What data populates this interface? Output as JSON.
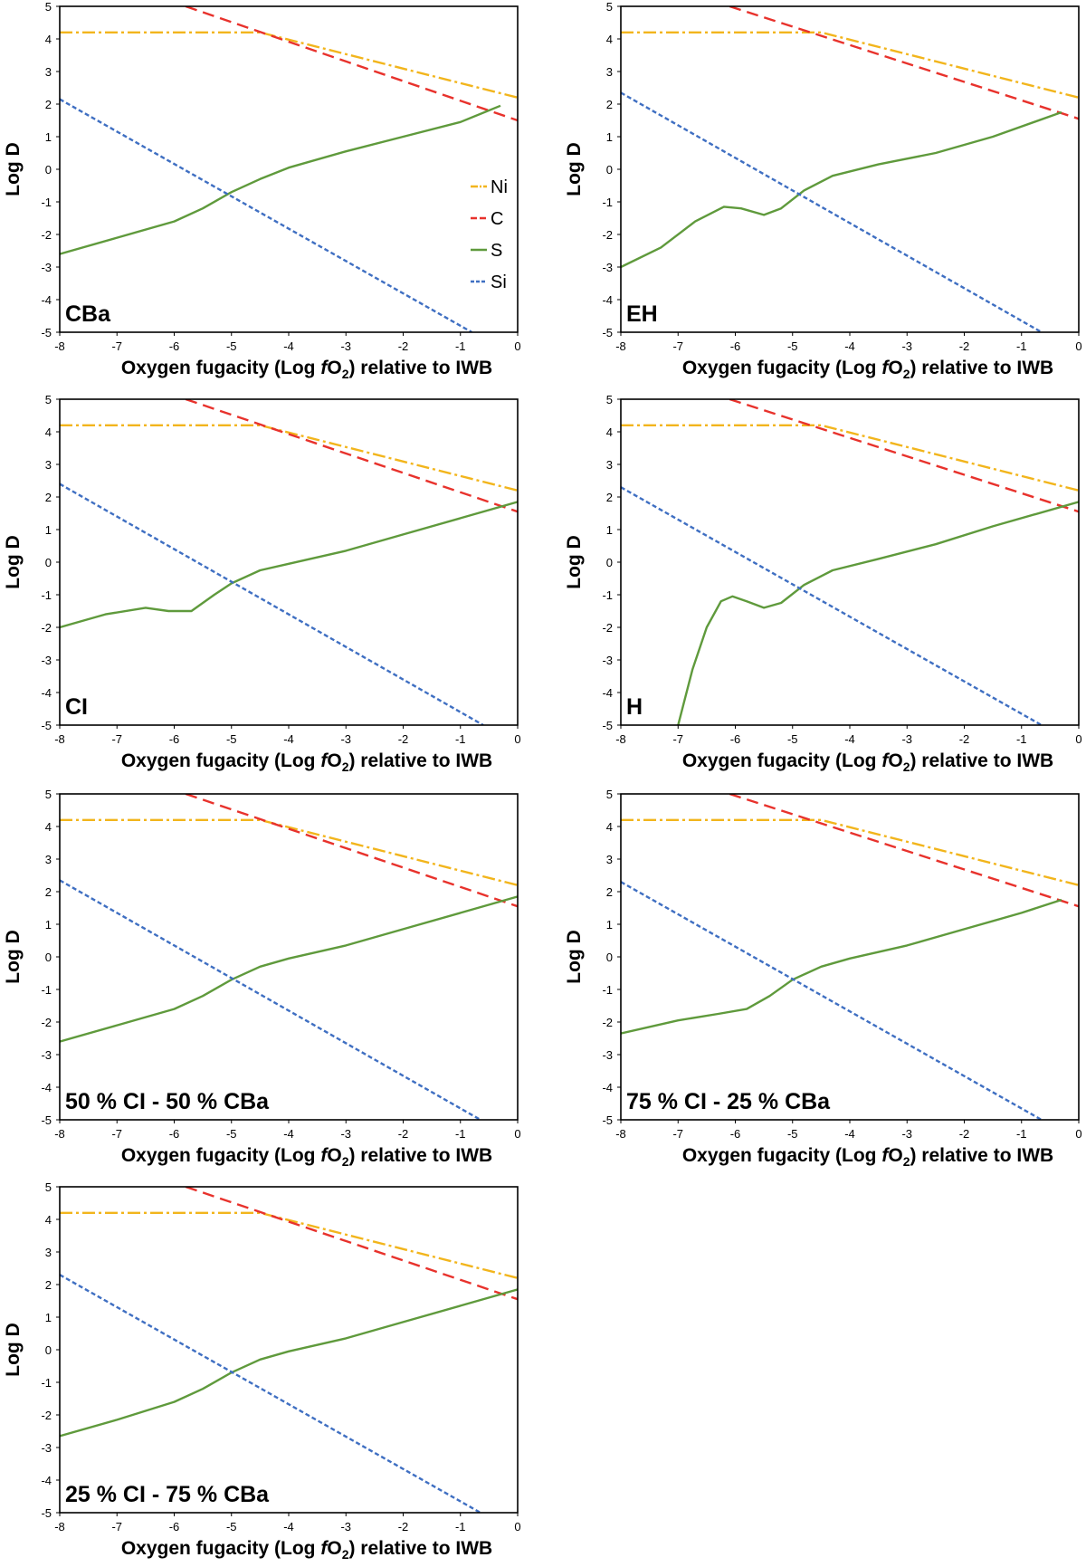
{
  "figure": {
    "series_legend": [
      {
        "name": "Ni",
        "color": "#f2b51c",
        "dash": "dashdot"
      },
      {
        "name": "C",
        "color": "#e8322c",
        "dash": "dash"
      },
      {
        "name": "S",
        "color": "#5f9a3c",
        "dash": "solid"
      },
      {
        "name": "Si",
        "color": "#3f6fc2",
        "dash": "dot"
      }
    ]
  },
  "chart_data": [
    {
      "type": "line",
      "panel_label": "CBa",
      "xlabel": "Oxygen fugacity (Log fO2) relative to IWB",
      "ylabel": "Log D",
      "xlim": [
        -8,
        0
      ],
      "ylim": [
        -5,
        5
      ],
      "x_ticks": [
        "-8",
        "-7",
        "-6",
        "-5",
        "-4",
        "-3",
        "-2",
        "-1",
        "0"
      ],
      "y_ticks": [
        "-5",
        "-4",
        "-3",
        "-2",
        "-1",
        "0",
        "1",
        "2",
        "3",
        "4",
        "5"
      ],
      "legend": "right-middle",
      "series": [
        {
          "name": "Ni",
          "points": [
            [
              -8,
              4.2
            ],
            [
              -5.5,
              4.2
            ],
            [
              -4.5,
              4.2
            ],
            [
              0,
              2.2
            ]
          ]
        },
        {
          "name": "C",
          "points": [
            [
              -5.8,
              5.0
            ],
            [
              0,
              1.5
            ]
          ]
        },
        {
          "name": "S",
          "points": [
            [
              -8,
              -2.6
            ],
            [
              -7,
              -2.1
            ],
            [
              -6,
              -1.6
            ],
            [
              -5.5,
              -1.2
            ],
            [
              -5,
              -0.7
            ],
            [
              -4.5,
              -0.3
            ],
            [
              -4,
              0.05
            ],
            [
              -3,
              0.55
            ],
            [
              -2,
              1.0
            ],
            [
              -1,
              1.45
            ],
            [
              -0.3,
              1.95
            ]
          ]
        },
        {
          "name": "Si",
          "points": [
            [
              -8,
              2.15
            ],
            [
              -0.8,
              -5.0
            ]
          ]
        }
      ]
    },
    {
      "type": "line",
      "panel_label": "EH",
      "xlabel": "Oxygen fugacity (Log fO2) relative to IWB",
      "ylabel": "Log D",
      "xlim": [
        -8,
        0
      ],
      "ylim": [
        -5,
        5
      ],
      "x_ticks": [
        "-8",
        "-7",
        "-6",
        "-5",
        "-4",
        "-3",
        "-2",
        "-1",
        "0"
      ],
      "y_ticks": [
        "-5",
        "-4",
        "-3",
        "-2",
        "-1",
        "0",
        "1",
        "2",
        "3",
        "4",
        "5"
      ],
      "series": [
        {
          "name": "Ni",
          "points": [
            [
              -8,
              4.2
            ],
            [
              -5.5,
              4.2
            ],
            [
              -4.5,
              4.2
            ],
            [
              0,
              2.2
            ]
          ]
        },
        {
          "name": "C",
          "points": [
            [
              -6.1,
              5.0
            ],
            [
              0,
              1.55
            ]
          ]
        },
        {
          "name": "S",
          "points": [
            [
              -8,
              -3.0
            ],
            [
              -7.3,
              -2.4
            ],
            [
              -6.7,
              -1.6
            ],
            [
              -6.2,
              -1.15
            ],
            [
              -5.9,
              -1.2
            ],
            [
              -5.5,
              -1.4
            ],
            [
              -5.2,
              -1.2
            ],
            [
              -4.8,
              -0.65
            ],
            [
              -4.3,
              -0.2
            ],
            [
              -3.5,
              0.15
            ],
            [
              -2.5,
              0.5
            ],
            [
              -1.5,
              1.0
            ],
            [
              -0.3,
              1.75
            ]
          ]
        },
        {
          "name": "Si",
          "points": [
            [
              -8,
              2.35
            ],
            [
              -0.65,
              -5.0
            ]
          ]
        }
      ]
    },
    {
      "type": "line",
      "panel_label": "CI",
      "xlabel": "Oxygen fugacity (Log fO2) relative to IWB",
      "ylabel": "Log D",
      "xlim": [
        -8,
        0
      ],
      "ylim": [
        -5,
        5
      ],
      "x_ticks": [
        "-8",
        "-7",
        "-6",
        "-5",
        "-4",
        "-3",
        "-2",
        "-1",
        "0"
      ],
      "y_ticks": [
        "-5",
        "-4",
        "-3",
        "-2",
        "-1",
        "0",
        "1",
        "2",
        "3",
        "4",
        "5"
      ],
      "series": [
        {
          "name": "Ni",
          "points": [
            [
              -8,
              4.2
            ],
            [
              -5.5,
              4.2
            ],
            [
              -4.5,
              4.2
            ],
            [
              0,
              2.2
            ]
          ]
        },
        {
          "name": "C",
          "points": [
            [
              -5.8,
              5.0
            ],
            [
              0,
              1.55
            ]
          ]
        },
        {
          "name": "S",
          "points": [
            [
              -8,
              -2.0
            ],
            [
              -7.2,
              -1.6
            ],
            [
              -6.5,
              -1.4
            ],
            [
              -6.1,
              -1.5
            ],
            [
              -5.7,
              -1.5
            ],
            [
              -5.3,
              -1.0
            ],
            [
              -5,
              -0.65
            ],
            [
              -4.5,
              -0.25
            ],
            [
              -4,
              -0.05
            ],
            [
              -3,
              0.35
            ],
            [
              -2,
              0.85
            ],
            [
              -1,
              1.35
            ],
            [
              0,
              1.85
            ]
          ]
        },
        {
          "name": "Si",
          "points": [
            [
              -8,
              2.4
            ],
            [
              -0.6,
              -5.0
            ]
          ]
        }
      ]
    },
    {
      "type": "line",
      "panel_label": "H",
      "xlabel": "Oxygen fugacity (Log fO2) relative to IWB",
      "ylabel": "Log D",
      "xlim": [
        -8,
        0
      ],
      "ylim": [
        -5,
        5
      ],
      "x_ticks": [
        "-8",
        "-7",
        "-6",
        "-5",
        "-4",
        "-3",
        "-2",
        "-1",
        "0"
      ],
      "y_ticks": [
        "-5",
        "-4",
        "-3",
        "-2",
        "-1",
        "0",
        "1",
        "2",
        "3",
        "4",
        "5"
      ],
      "series": [
        {
          "name": "Ni",
          "points": [
            [
              -8,
              4.2
            ],
            [
              -5.5,
              4.2
            ],
            [
              -4.5,
              4.2
            ],
            [
              0,
              2.2
            ]
          ]
        },
        {
          "name": "C",
          "points": [
            [
              -6.1,
              5.0
            ],
            [
              0,
              1.55
            ]
          ]
        },
        {
          "name": "S",
          "points": [
            [
              -7.0,
              -5.0
            ],
            [
              -6.75,
              -3.3
            ],
            [
              -6.5,
              -2.0
            ],
            [
              -6.25,
              -1.2
            ],
            [
              -6.05,
              -1.05
            ],
            [
              -5.8,
              -1.2
            ],
            [
              -5.5,
              -1.4
            ],
            [
              -5.2,
              -1.25
            ],
            [
              -4.8,
              -0.7
            ],
            [
              -4.3,
              -0.25
            ],
            [
              -3.5,
              0.1
            ],
            [
              -2.5,
              0.55
            ],
            [
              -1.5,
              1.1
            ],
            [
              0,
              1.85
            ]
          ]
        },
        {
          "name": "Si",
          "points": [
            [
              -8,
              2.3
            ],
            [
              -0.65,
              -5.0
            ]
          ]
        }
      ]
    },
    {
      "type": "line",
      "panel_label": "50 % CI - 50 % CBa",
      "xlabel": "Oxygen fugacity (Log fO2) relative to IWB",
      "ylabel": "Log D",
      "xlim": [
        -8,
        0
      ],
      "ylim": [
        -5,
        5
      ],
      "x_ticks": [
        "-8",
        "-7",
        "-6",
        "-5",
        "-4",
        "-3",
        "-2",
        "-1",
        "0"
      ],
      "y_ticks": [
        "-5",
        "-4",
        "-3",
        "-2",
        "-1",
        "0",
        "1",
        "2",
        "3",
        "4",
        "5"
      ],
      "series": [
        {
          "name": "Ni",
          "points": [
            [
              -8,
              4.2
            ],
            [
              -5.5,
              4.2
            ],
            [
              -4.5,
              4.2
            ],
            [
              0,
              2.2
            ]
          ]
        },
        {
          "name": "C",
          "points": [
            [
              -5.8,
              5.0
            ],
            [
              0,
              1.55
            ]
          ]
        },
        {
          "name": "S",
          "points": [
            [
              -8,
              -2.6
            ],
            [
              -7,
              -2.1
            ],
            [
              -6,
              -1.6
            ],
            [
              -5.5,
              -1.2
            ],
            [
              -5,
              -0.7
            ],
            [
              -4.5,
              -0.3
            ],
            [
              -4,
              -0.05
            ],
            [
              -3,
              0.35
            ],
            [
              -2,
              0.85
            ],
            [
              -1,
              1.35
            ],
            [
              0,
              1.85
            ]
          ]
        },
        {
          "name": "Si",
          "points": [
            [
              -8,
              2.35
            ],
            [
              -0.65,
              -5.0
            ]
          ]
        }
      ]
    },
    {
      "type": "line",
      "panel_label": "75 % CI - 25 % CBa",
      "xlabel": "Oxygen fugacity (Log fO2) relative to IWB",
      "ylabel": "Log D",
      "xlim": [
        -8,
        0
      ],
      "ylim": [
        -5,
        5
      ],
      "x_ticks": [
        "-8",
        "-7",
        "-6",
        "-5",
        "-4",
        "-3",
        "-2",
        "-1",
        "0"
      ],
      "y_ticks": [
        "-5",
        "-4",
        "-3",
        "-2",
        "-1",
        "0",
        "1",
        "2",
        "3",
        "4",
        "5"
      ],
      "series": [
        {
          "name": "Ni",
          "points": [
            [
              -8,
              4.2
            ],
            [
              -5.5,
              4.2
            ],
            [
              -4.5,
              4.2
            ],
            [
              0,
              2.2
            ]
          ]
        },
        {
          "name": "C",
          "points": [
            [
              -6.1,
              5.0
            ],
            [
              0,
              1.55
            ]
          ]
        },
        {
          "name": "S",
          "points": [
            [
              -8,
              -2.35
            ],
            [
              -7,
              -1.95
            ],
            [
              -6.3,
              -1.75
            ],
            [
              -5.8,
              -1.6
            ],
            [
              -5.4,
              -1.2
            ],
            [
              -5,
              -0.7
            ],
            [
              -4.5,
              -0.3
            ],
            [
              -4,
              -0.05
            ],
            [
              -3,
              0.35
            ],
            [
              -2,
              0.85
            ],
            [
              -1,
              1.35
            ],
            [
              -0.3,
              1.75
            ]
          ]
        },
        {
          "name": "Si",
          "points": [
            [
              -8,
              2.3
            ],
            [
              -0.65,
              -5.0
            ]
          ]
        }
      ]
    },
    {
      "type": "line",
      "panel_label": "25 % CI - 75 % CBa",
      "xlabel": "Oxygen fugacity (Log fO2) relative to IWB",
      "ylabel": "Log D",
      "xlim": [
        -8,
        0
      ],
      "ylim": [
        -5,
        5
      ],
      "x_ticks": [
        "-8",
        "-7",
        "-6",
        "-5",
        "-4",
        "-3",
        "-2",
        "-1",
        "0"
      ],
      "y_ticks": [
        "-5",
        "-4",
        "-3",
        "-2",
        "-1",
        "0",
        "1",
        "2",
        "3",
        "4",
        "5"
      ],
      "series": [
        {
          "name": "Ni",
          "points": [
            [
              -8,
              4.2
            ],
            [
              -5.5,
              4.2
            ],
            [
              -4.5,
              4.2
            ],
            [
              0,
              2.2
            ]
          ]
        },
        {
          "name": "C",
          "points": [
            [
              -5.8,
              5.0
            ],
            [
              0,
              1.55
            ]
          ]
        },
        {
          "name": "S",
          "points": [
            [
              -8,
              -2.65
            ],
            [
              -7,
              -2.15
            ],
            [
              -6,
              -1.6
            ],
            [
              -5.5,
              -1.2
            ],
            [
              -5,
              -0.7
            ],
            [
              -4.5,
              -0.3
            ],
            [
              -4,
              -0.05
            ],
            [
              -3,
              0.35
            ],
            [
              -2,
              0.85
            ],
            [
              -1,
              1.35
            ],
            [
              0,
              1.85
            ]
          ]
        },
        {
          "name": "Si",
          "points": [
            [
              -8,
              2.3
            ],
            [
              -0.65,
              -5.0
            ]
          ]
        }
      ]
    }
  ]
}
